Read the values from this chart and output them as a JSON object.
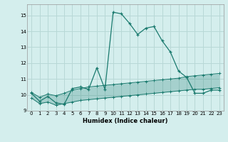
{
  "xlabel": "Humidex (Indice chaleur)",
  "background_color": "#d4eeed",
  "grid_color": "#b8d8d6",
  "line_color": "#1a7a6e",
  "xlim": [
    -0.5,
    23.5
  ],
  "ylim": [
    9.0,
    15.7
  ],
  "yticks": [
    9,
    10,
    11,
    12,
    13,
    14,
    15
  ],
  "xticks": [
    0,
    1,
    2,
    3,
    4,
    5,
    6,
    7,
    8,
    9,
    10,
    11,
    12,
    13,
    14,
    15,
    16,
    17,
    18,
    19,
    20,
    21,
    22,
    23
  ],
  "main_line_x": [
    0,
    1,
    2,
    3,
    4,
    5,
    6,
    7,
    8,
    9,
    10,
    11,
    12,
    13,
    14,
    15,
    16,
    17,
    18,
    19,
    20,
    21,
    22,
    23
  ],
  "main_line_y": [
    10.1,
    9.6,
    9.9,
    9.5,
    9.4,
    10.4,
    10.5,
    10.35,
    11.7,
    10.35,
    15.2,
    15.1,
    14.5,
    13.8,
    14.2,
    14.3,
    13.4,
    12.7,
    11.5,
    11.1,
    10.1,
    10.1,
    10.3,
    10.3
  ],
  "band_upper_x": [
    0,
    1,
    2,
    3,
    4,
    5,
    6,
    7,
    8,
    9,
    10,
    11,
    12,
    13,
    14,
    15,
    16,
    17,
    18,
    19,
    20,
    21,
    22,
    23
  ],
  "band_upper_y": [
    10.15,
    9.85,
    10.05,
    9.95,
    10.1,
    10.3,
    10.4,
    10.5,
    10.55,
    10.6,
    10.65,
    10.7,
    10.75,
    10.8,
    10.85,
    10.9,
    10.95,
    11.0,
    11.05,
    11.15,
    11.2,
    11.25,
    11.3,
    11.35
  ],
  "band_lower_x": [
    0,
    1,
    2,
    3,
    4,
    5,
    6,
    7,
    8,
    9,
    10,
    11,
    12,
    13,
    14,
    15,
    16,
    17,
    18,
    19,
    20,
    21,
    22,
    23
  ],
  "band_lower_y": [
    9.8,
    9.45,
    9.55,
    9.35,
    9.45,
    9.55,
    9.65,
    9.7,
    9.75,
    9.8,
    9.85,
    9.9,
    9.95,
    10.0,
    10.05,
    10.1,
    10.15,
    10.2,
    10.25,
    10.3,
    10.35,
    10.35,
    10.4,
    10.45
  ]
}
